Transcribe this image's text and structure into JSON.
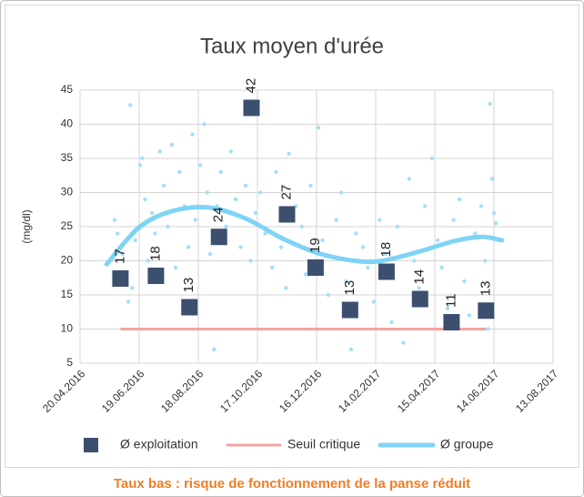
{
  "chart_data": {
    "type": "scatter",
    "title": "Taux moyen d'urée",
    "y_label": "(mg/dl)",
    "annotation": "Taux bas : risque de fonctionnement de la panse réduit",
    "xlim": [
      "20.04.2016",
      "13.08.2017"
    ],
    "xticks": [
      "20.04.2016",
      "19.06.2016",
      "18.08.2016",
      "17.10.2016",
      "16.12.2016",
      "14.02.2017",
      "15.04.2017",
      "14.06.2017",
      "13.08.2017"
    ],
    "ylim": [
      5,
      45
    ],
    "yticks": [
      5,
      10,
      15,
      20,
      25,
      30,
      35,
      40,
      45
    ],
    "grid": true,
    "legend": "bottom",
    "series": [
      {
        "name": "Ø exploitation",
        "type": "square",
        "color": "#3d4f6e",
        "x": [
          "31.05.2016",
          "06.07.2016",
          "09.08.2016",
          "08.09.2016",
          "11.10.2016",
          "16.11.2016",
          "15.12.2016",
          "19.01.2017",
          "25.02.2017",
          "31.03.2017",
          "02.05.2017",
          "06.06.2017"
        ],
        "values": [
          17.4,
          17.8,
          13.2,
          23.5,
          42.4,
          26.8,
          19.0,
          12.8,
          18.4,
          14.4,
          11.0,
          12.7
        ],
        "value_labels": [
          "17",
          "18",
          "13",
          "24",
          "42",
          "27",
          "19",
          "13",
          "18",
          "14",
          "11",
          "13"
        ]
      },
      {
        "name": "Seuil critique",
        "type": "line",
        "color": "#f4a3a3",
        "x": [
          "31.05.2016",
          "06.06.2017"
        ],
        "values": [
          10,
          10
        ]
      },
      {
        "name": "Ø groupe",
        "type": "curve",
        "color": "#7fd3f5",
        "x": [
          "17.05.2016",
          "19.06.2016",
          "23.07.2016",
          "29.08.2016",
          "05.10.2016",
          "11.11.2016",
          "18.12.2016",
          "24.01.2017",
          "20.02.2017",
          "29.03.2017",
          "05.05.2017",
          "02.06.2017",
          "22.06.2017"
        ],
        "values": [
          19.5,
          24.9,
          27.3,
          27.8,
          26.2,
          23.3,
          21.1,
          20.0,
          20.0,
          21.3,
          22.9,
          23.5,
          23.0
        ]
      },
      {
        "type": "dot",
        "color": "#a6def7",
        "x": [
          "25.05.2016",
          "28.05.2016",
          "02.06.2016",
          "05.06.2016",
          "08.06.2016",
          "10.06.2016",
          "12.06.2016",
          "15.06.2016",
          "20.06.2016",
          "22.06.2016",
          "25.06.2016",
          "28.06.2016",
          "02.07.2016",
          "05.07.2016",
          "10.07.2016",
          "14.07.2016",
          "18.07.2016",
          "22.07.2016",
          "26.07.2016",
          "30.07.2016",
          "04.08.2016",
          "08.08.2016",
          "12.08.2016",
          "15.08.2016",
          "20.08.2016",
          "24.08.2016",
          "27.08.2016",
          "30.08.2016",
          "03.09.2016",
          "06.09.2016",
          "10.09.2016",
          "15.09.2016",
          "20.09.2016",
          "25.09.2016",
          "30.09.2016",
          "05.10.2016",
          "10.10.2016",
          "15.10.2016",
          "20.10.2016",
          "25.10.2016",
          "01.11.2016",
          "05.11.2016",
          "10.11.2016",
          "15.11.2016",
          "18.11.2016",
          "25.11.2016",
          "01.12.2016",
          "05.12.2016",
          "10.12.2016",
          "18.12.2016",
          "22.12.2016",
          "28.12.2016",
          "05.01.2017",
          "10.01.2017",
          "15.01.2017",
          "20.01.2017",
          "25.01.2017",
          "01.02.2017",
          "06.02.2017",
          "12.02.2017",
          "18.02.2017",
          "24.02.2017",
          "02.03.2017",
          "08.03.2017",
          "14.03.2017",
          "20.03.2017",
          "25.03.2017",
          "30.03.2017",
          "05.04.2017",
          "12.04.2017",
          "18.04.2017",
          "22.04.2017",
          "28.04.2017",
          "04.05.2017",
          "10.05.2017",
          "15.05.2017",
          "20.05.2017",
          "26.05.2017",
          "01.06.2017",
          "05.06.2017",
          "08.06.2017",
          "10.06.2017",
          "12.06.2017",
          "14.06.2017",
          "16.06.2017"
        ],
        "values": [
          26,
          24,
          21,
          18,
          14,
          42.8,
          16,
          23,
          34,
          35,
          29,
          20,
          27,
          24,
          36,
          31,
          25,
          37,
          19,
          33,
          28,
          22,
          38.5,
          26,
          34,
          40,
          30,
          21,
          7,
          28,
          33,
          25,
          36,
          29,
          22,
          31,
          20,
          27,
          30,
          24,
          19,
          33,
          22,
          16,
          35.7,
          28,
          25,
          18,
          31,
          39.5,
          23,
          15,
          26,
          30,
          17,
          7,
          24,
          22,
          19,
          14,
          26,
          21,
          11,
          25,
          8,
          32,
          20,
          16,
          28,
          35,
          23,
          19,
          13,
          26,
          29,
          17,
          12,
          24,
          28,
          20,
          10,
          43,
          32,
          27,
          25.5
        ]
      }
    ]
  }
}
